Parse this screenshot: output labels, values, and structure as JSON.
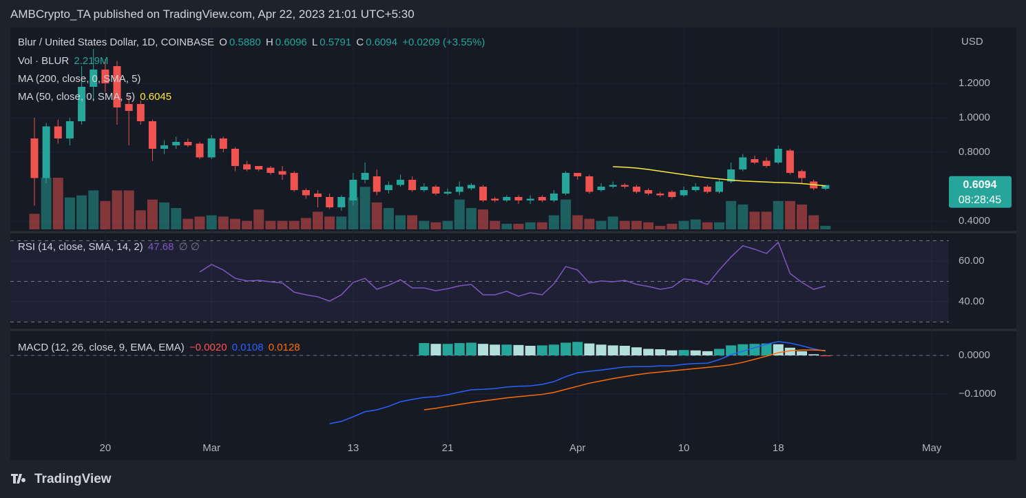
{
  "header": {
    "publisher": "AMBCrypto_TA published on TradingView.com, Apr 22, 2023 21:01 UTC+5:30"
  },
  "footer": {
    "brand": "TradingView"
  },
  "chart_data": [
    {
      "type": "candlestick",
      "title": "Blur / United States Dollar, 1D, COINBASE",
      "legend_items": [
        {
          "name": "O",
          "value": "0.5880"
        },
        {
          "name": "H",
          "value": "0.6096"
        },
        {
          "name": "L",
          "value": "0.5791"
        },
        {
          "name": "C",
          "value": "0.6094"
        }
      ],
      "change": "+0.0209 (+3.55%)",
      "currency": "USD",
      "last_price_label": "0.6094",
      "countdown": "08:28:45",
      "up_color": "#26a69a",
      "down_color": "#ef5350",
      "open": [
        0.88,
        0.65,
        0.95,
        0.88,
        0.98,
        1.18,
        1.28,
        1.3,
        1.08,
        1.08,
        0.98,
        0.82,
        0.84,
        0.86,
        0.85,
        0.77,
        0.88,
        0.82,
        0.73,
        0.72,
        0.71,
        0.69,
        0.68,
        0.58,
        0.56,
        0.54,
        0.48,
        0.52,
        0.64,
        0.66,
        0.58,
        0.61,
        0.64,
        0.58,
        0.6,
        0.56,
        0.57,
        0.59,
        0.6,
        0.53,
        0.52,
        0.54,
        0.52,
        0.54,
        0.52,
        0.56,
        0.68,
        0.66,
        0.58,
        0.6,
        0.61,
        0.6,
        0.58,
        0.56,
        0.57,
        0.55,
        0.58,
        0.6,
        0.57,
        0.63,
        0.7,
        0.76,
        0.75,
        0.74,
        0.81,
        0.69,
        0.63,
        0.588
      ],
      "high": [
        1.0,
        0.97,
        0.99,
        1.0,
        1.3,
        1.4,
        1.34,
        1.33,
        1.13,
        1.1,
        0.99,
        0.87,
        0.89,
        0.88,
        0.86,
        0.9,
        0.89,
        0.83,
        0.75,
        0.72,
        0.72,
        0.72,
        0.69,
        0.59,
        0.58,
        0.56,
        0.55,
        0.68,
        0.74,
        0.7,
        0.63,
        0.67,
        0.66,
        0.62,
        0.61,
        0.59,
        0.63,
        0.62,
        0.61,
        0.54,
        0.55,
        0.55,
        0.55,
        0.55,
        0.58,
        0.69,
        0.68,
        0.67,
        0.62,
        0.63,
        0.62,
        0.61,
        0.59,
        0.57,
        0.58,
        0.6,
        0.62,
        0.61,
        0.64,
        0.74,
        0.79,
        0.78,
        0.77,
        0.84,
        0.82,
        0.7,
        0.64,
        0.6096
      ],
      "low": [
        0.49,
        0.62,
        0.85,
        0.84,
        0.96,
        1.1,
        1.15,
        0.96,
        0.84,
        0.96,
        0.75,
        0.79,
        0.82,
        0.83,
        0.76,
        0.76,
        0.8,
        0.69,
        0.69,
        0.69,
        0.67,
        0.64,
        0.57,
        0.53,
        0.48,
        0.47,
        0.46,
        0.49,
        0.62,
        0.55,
        0.56,
        0.6,
        0.57,
        0.57,
        0.55,
        0.55,
        0.55,
        0.58,
        0.51,
        0.51,
        0.51,
        0.5,
        0.5,
        0.51,
        0.51,
        0.55,
        0.64,
        0.56,
        0.57,
        0.59,
        0.59,
        0.56,
        0.55,
        0.54,
        0.53,
        0.54,
        0.57,
        0.56,
        0.56,
        0.62,
        0.69,
        0.73,
        0.71,
        0.73,
        0.67,
        0.62,
        0.58,
        0.5791
      ],
      "close": [
        0.65,
        0.95,
        0.88,
        0.98,
        1.18,
        1.28,
        1.2,
        1.06,
        1.04,
        0.98,
        0.82,
        0.84,
        0.86,
        0.84,
        0.77,
        0.88,
        0.82,
        0.72,
        0.7,
        0.7,
        0.68,
        0.67,
        0.58,
        0.55,
        0.54,
        0.48,
        0.54,
        0.64,
        0.68,
        0.57,
        0.61,
        0.64,
        0.58,
        0.6,
        0.56,
        0.57,
        0.6,
        0.61,
        0.52,
        0.52,
        0.54,
        0.52,
        0.53,
        0.52,
        0.56,
        0.68,
        0.66,
        0.57,
        0.6,
        0.61,
        0.6,
        0.57,
        0.56,
        0.55,
        0.54,
        0.58,
        0.6,
        0.57,
        0.63,
        0.7,
        0.77,
        0.74,
        0.72,
        0.82,
        0.68,
        0.65,
        0.59,
        0.6094
      ],
      "volume": {
        "name": "Vol · BLUR",
        "value_label": "2.219M",
        "ylim": [
          0,
          125
        ],
        "values": [
          9.7,
          32.2,
          32.2,
          19.9,
          21.2,
          24.3,
          17.7,
          24.3,
          24.3,
          11.9,
          18.6,
          16.8,
          13.3,
          6.6,
          8.0,
          8.8,
          8.0,
          6.6,
          5.3,
          12.4,
          5.3,
          5.3,
          5.3,
          7.1,
          11.0,
          8.0,
          8.0,
          19.9,
          26.5,
          16.8,
          13.3,
          8.8,
          8.8,
          5.3,
          4.4,
          5.3,
          18.6,
          13.3,
          12.4,
          5.3,
          3.5,
          3.5,
          4.4,
          4.4,
          8.8,
          18.6,
          8.8,
          6.6,
          5.3,
          8.0,
          5.3,
          5.3,
          4.4,
          2.2,
          3.5,
          5.3,
          6.2,
          4.4,
          4.4,
          17.7,
          15.5,
          11.0,
          11.0,
          17.7,
          17.7,
          15.5,
          8.8,
          2.219
        ]
      },
      "series": [
        {
          "name": "MA (200, close, 0, SMA, 5)"
        },
        {
          "name": "MA (50, close, 0, SMA, 5)",
          "color": "#ffeb3b",
          "values": [
            null,
            null,
            null,
            null,
            null,
            null,
            null,
            null,
            null,
            null,
            null,
            null,
            null,
            null,
            null,
            null,
            null,
            null,
            null,
            null,
            null,
            null,
            null,
            null,
            null,
            null,
            null,
            null,
            null,
            null,
            null,
            null,
            null,
            null,
            null,
            null,
            null,
            null,
            null,
            null,
            null,
            null,
            null,
            null,
            null,
            null,
            null,
            null,
            null,
            0.716,
            0.713,
            0.708,
            0.7,
            0.69,
            0.68,
            0.67,
            0.66,
            0.652,
            0.645,
            0.638,
            0.633,
            0.63,
            0.627,
            0.624,
            0.622,
            0.618,
            0.612,
            0.6045
          ]
        }
      ],
      "ylim": [
        0.352,
        1.516
      ],
      "yticks": [
        {
          "value": 1.2,
          "label": "1.2000"
        },
        {
          "value": 1.0,
          "label": "1.0000"
        },
        {
          "value": 0.8,
          "label": "0.8000"
        },
        {
          "value": 0.4,
          "label": "0.4000"
        }
      ],
      "xlim": [
        -2.04,
        77.45
      ],
      "xticks": [
        {
          "value": 6,
          "label": "20"
        },
        {
          "value": 15,
          "label": "Mar"
        },
        {
          "value": 27,
          "label": "13"
        },
        {
          "value": 35,
          "label": "21"
        },
        {
          "value": 46,
          "label": "Apr"
        },
        {
          "value": 55,
          "label": "10"
        },
        {
          "value": 63,
          "label": "18"
        },
        {
          "value": 76,
          "label": "May"
        }
      ]
    },
    {
      "type": "line",
      "title": "RSI (14, close, SMA, 14, 2)",
      "value_label": "47.68",
      "extra": "∅ ∅",
      "color": "#7e57c2",
      "values": [
        null,
        null,
        null,
        null,
        null,
        null,
        null,
        null,
        null,
        null,
        null,
        null,
        null,
        null,
        54.6,
        58.3,
        55.6,
        51.5,
        50.2,
        50.5,
        49.8,
        49.2,
        44.7,
        43.4,
        42.4,
        40.3,
        43.4,
        49.5,
        51.5,
        46.1,
        48.1,
        50.8,
        46.8,
        46.8,
        45.4,
        46.4,
        47.8,
        48.5,
        43.4,
        43.4,
        45.1,
        42.7,
        44.4,
        43.4,
        48.8,
        57.3,
        55.6,
        49.2,
        50.2,
        49.8,
        50.5,
        48.5,
        47.5,
        46.1,
        47.1,
        51.2,
        50.5,
        48.5,
        55.6,
        62.0,
        67.5,
        65.8,
        63.7,
        69.2,
        53.9,
        49.5,
        46.1,
        47.68
      ],
      "levels": [
        70,
        50,
        30
      ],
      "ylim": [
        26.8,
        73.2
      ],
      "yticks": [
        {
          "value": 60,
          "label": "60.00"
        },
        {
          "value": 40,
          "label": "40.00"
        }
      ]
    },
    {
      "type": "macd",
      "title": "MACD (12, 26, close, 9, EMA, EMA)",
      "legend_values": [
        "−0.0020",
        "0.0108",
        "0.0128"
      ],
      "histogram": {
        "colors": {
          "up_strong": "#26a69a",
          "up_weak": "#b2dfdb",
          "down_strong": "#ff5252",
          "down_weak": "#ffcdd2"
        },
        "values": [
          null,
          null,
          null,
          null,
          null,
          null,
          null,
          null,
          null,
          null,
          null,
          null,
          null,
          null,
          null,
          null,
          null,
          null,
          null,
          null,
          null,
          null,
          null,
          null,
          null,
          null,
          null,
          null,
          null,
          null,
          null,
          null,
          null,
          0.032,
          0.03,
          0.03,
          0.032,
          0.033,
          0.03,
          0.028,
          0.028,
          0.027,
          0.025,
          0.026,
          0.028,
          0.033,
          0.035,
          0.031,
          0.028,
          0.026,
          0.025,
          0.021,
          0.017,
          0.016,
          0.013,
          0.014,
          0.013,
          0.011,
          0.017,
          0.026,
          0.029,
          0.03,
          0.031,
          0.029,
          0.02,
          0.011,
          0.003,
          -0.002
        ]
      },
      "macd": {
        "color": "#2962ff",
        "values": [
          null,
          null,
          null,
          null,
          null,
          null,
          null,
          null,
          null,
          null,
          null,
          null,
          null,
          null,
          null,
          null,
          null,
          null,
          null,
          null,
          null,
          null,
          null,
          null,
          null,
          -0.177,
          -0.171,
          -0.159,
          -0.146,
          -0.141,
          -0.132,
          -0.12,
          -0.114,
          -0.109,
          -0.107,
          -0.102,
          -0.095,
          -0.089,
          -0.088,
          -0.086,
          -0.082,
          -0.08,
          -0.079,
          -0.075,
          -0.068,
          -0.055,
          -0.045,
          -0.041,
          -0.038,
          -0.034,
          -0.03,
          -0.029,
          -0.029,
          -0.027,
          -0.027,
          -0.023,
          -0.021,
          -0.02,
          -0.011,
          0.002,
          0.011,
          0.02,
          0.029,
          0.036,
          0.032,
          0.025,
          0.017,
          0.0108
        ]
      },
      "signal": {
        "color": "#ff6d00",
        "values": [
          null,
          null,
          null,
          null,
          null,
          null,
          null,
          null,
          null,
          null,
          null,
          null,
          null,
          null,
          null,
          null,
          null,
          null,
          null,
          null,
          null,
          null,
          null,
          null,
          null,
          null,
          null,
          null,
          null,
          null,
          null,
          null,
          null,
          -0.141,
          -0.137,
          -0.132,
          -0.127,
          -0.122,
          -0.118,
          -0.114,
          -0.11,
          -0.107,
          -0.104,
          -0.101,
          -0.096,
          -0.088,
          -0.08,
          -0.072,
          -0.066,
          -0.06,
          -0.055,
          -0.05,
          -0.046,
          -0.043,
          -0.04,
          -0.037,
          -0.034,
          -0.031,
          -0.028,
          -0.024,
          -0.018,
          -0.01,
          -0.002,
          0.007,
          0.012,
          0.014,
          0.014,
          0.0128
        ]
      },
      "ylim": [
        -0.2214,
        0.0607
      ],
      "yticks": [
        {
          "value": 0,
          "label": "0.0000"
        },
        {
          "value": -0.1,
          "label": "−0.1000"
        }
      ]
    }
  ]
}
